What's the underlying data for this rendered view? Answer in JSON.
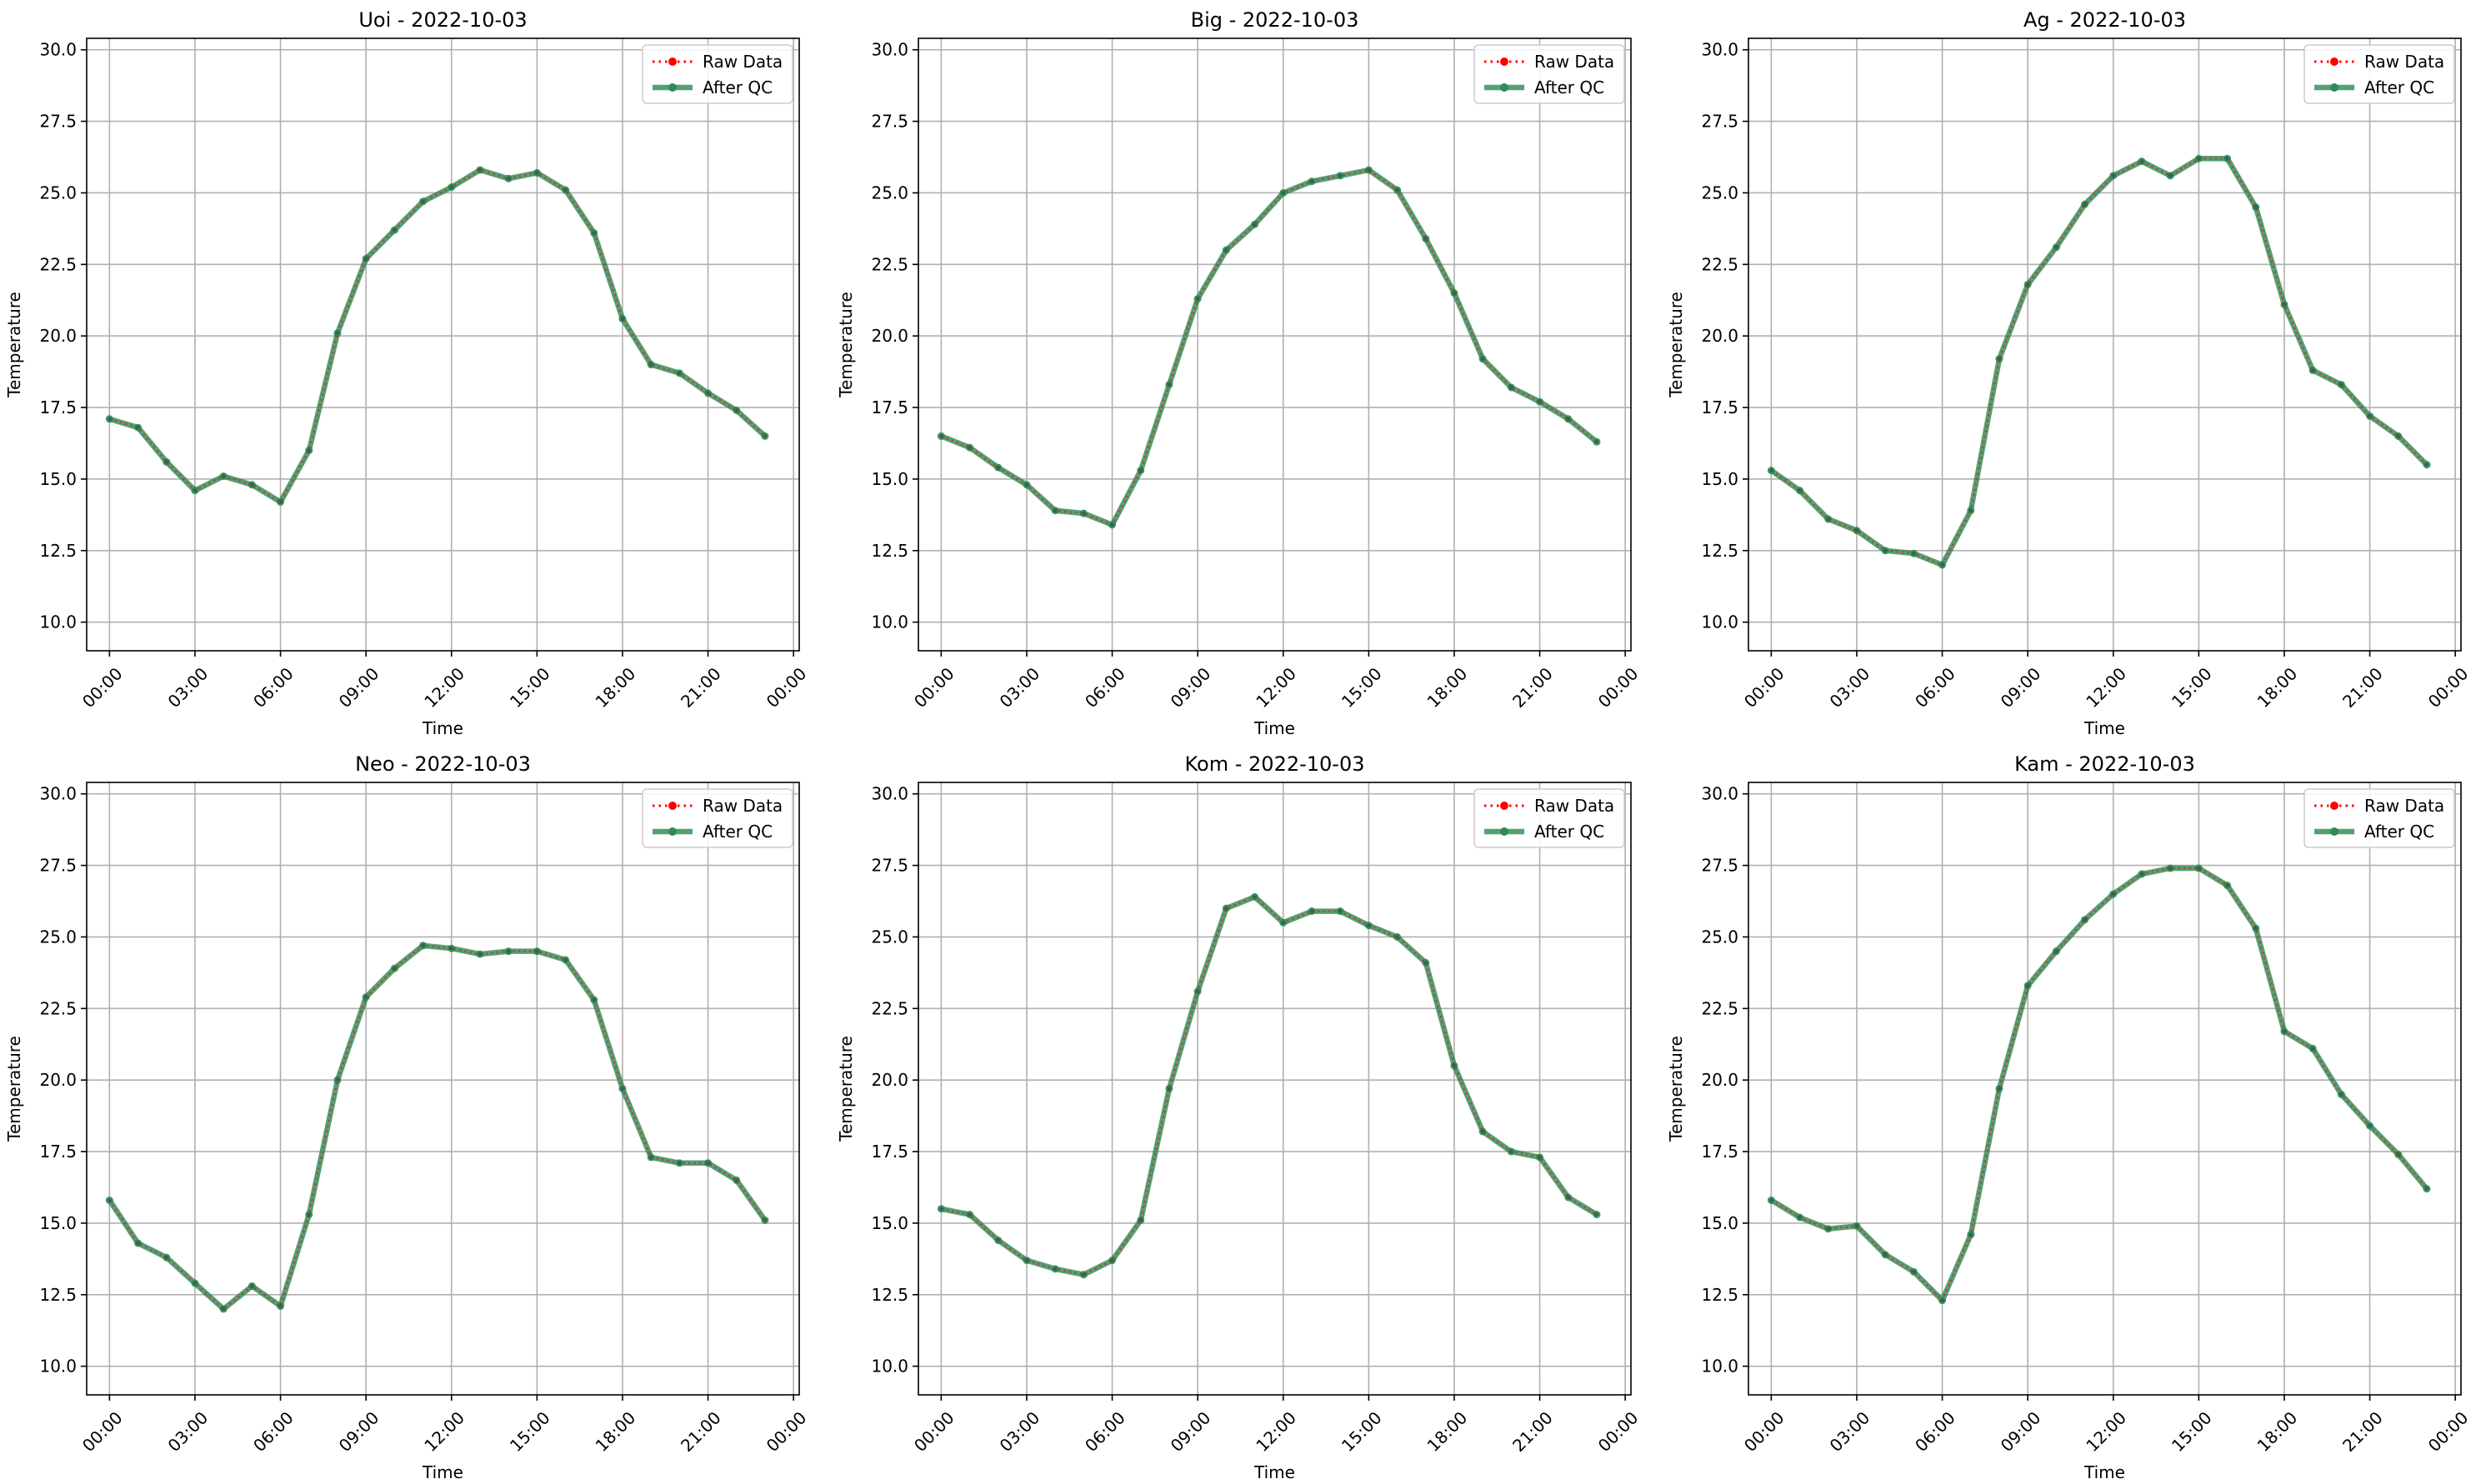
{
  "chart_data": [
    {
      "type": "line",
      "title": "Uoi - 2022-10-03",
      "xlabel": "Time",
      "ylabel": "Temperature",
      "x": [
        "00:00",
        "01:00",
        "02:00",
        "03:00",
        "04:00",
        "05:00",
        "06:00",
        "07:00",
        "08:00",
        "09:00",
        "10:00",
        "11:00",
        "12:00",
        "13:00",
        "14:00",
        "15:00",
        "16:00",
        "17:00",
        "18:00",
        "19:00",
        "20:00",
        "21:00",
        "22:00",
        "23:00"
      ],
      "x_ticks": [
        "00:00",
        "03:00",
        "06:00",
        "09:00",
        "12:00",
        "15:00",
        "18:00",
        "21:00",
        "00:00"
      ],
      "ylim": [
        9,
        30.4
      ],
      "y_ticks": [
        "10.0",
        "12.5",
        "15.0",
        "17.5",
        "20.0",
        "22.5",
        "25.0",
        "27.5",
        "30.0"
      ],
      "grid": true,
      "legend_position": "top-right",
      "series": [
        {
          "name": "Raw Data",
          "color": "#ff0000",
          "style": "dotted",
          "values": [
            17.1,
            16.8,
            15.6,
            14.6,
            15.1,
            14.8,
            14.2,
            16.0,
            20.1,
            22.7,
            23.7,
            24.7,
            25.2,
            25.8,
            25.5,
            25.7,
            25.1,
            23.6,
            20.6,
            19.0,
            18.7,
            18.0,
            17.4,
            16.5
          ]
        },
        {
          "name": "After QC",
          "color": "#2e8b57",
          "style": "solid",
          "values": [
            17.1,
            16.8,
            15.6,
            14.6,
            15.1,
            14.8,
            14.2,
            16.0,
            20.1,
            22.7,
            23.7,
            24.7,
            25.2,
            25.8,
            25.5,
            25.7,
            25.1,
            23.6,
            20.6,
            19.0,
            18.7,
            18.0,
            17.4,
            16.5
          ]
        }
      ]
    },
    {
      "type": "line",
      "title": "Big - 2022-10-03",
      "xlabel": "Time",
      "ylabel": "Temperature",
      "x": [
        "00:00",
        "01:00",
        "02:00",
        "03:00",
        "04:00",
        "05:00",
        "06:00",
        "07:00",
        "08:00",
        "09:00",
        "10:00",
        "11:00",
        "12:00",
        "13:00",
        "14:00",
        "15:00",
        "16:00",
        "17:00",
        "18:00",
        "19:00",
        "20:00",
        "21:00",
        "22:00",
        "23:00"
      ],
      "x_ticks": [
        "00:00",
        "03:00",
        "06:00",
        "09:00",
        "12:00",
        "15:00",
        "18:00",
        "21:00",
        "00:00"
      ],
      "ylim": [
        9,
        30.4
      ],
      "y_ticks": [
        "10.0",
        "12.5",
        "15.0",
        "17.5",
        "20.0",
        "22.5",
        "25.0",
        "27.5",
        "30.0"
      ],
      "grid": true,
      "legend_position": "top-right",
      "series": [
        {
          "name": "Raw Data",
          "color": "#ff0000",
          "style": "dotted",
          "values": [
            16.5,
            16.1,
            15.4,
            14.8,
            13.9,
            13.8,
            13.4,
            15.3,
            18.3,
            21.3,
            23.0,
            23.9,
            25.0,
            25.4,
            25.6,
            25.8,
            25.1,
            23.4,
            21.5,
            19.2,
            18.2,
            17.7,
            17.1,
            16.3
          ]
        },
        {
          "name": "After QC",
          "color": "#2e8b57",
          "style": "solid",
          "values": [
            16.5,
            16.1,
            15.4,
            14.8,
            13.9,
            13.8,
            13.4,
            15.3,
            18.3,
            21.3,
            23.0,
            23.9,
            25.0,
            25.4,
            25.6,
            25.8,
            25.1,
            23.4,
            21.5,
            19.2,
            18.2,
            17.7,
            17.1,
            16.3
          ]
        }
      ]
    },
    {
      "type": "line",
      "title": "Ag - 2022-10-03",
      "xlabel": "Time",
      "ylabel": "Temperature",
      "x": [
        "00:00",
        "01:00",
        "02:00",
        "03:00",
        "04:00",
        "05:00",
        "06:00",
        "07:00",
        "08:00",
        "09:00",
        "10:00",
        "11:00",
        "12:00",
        "13:00",
        "14:00",
        "15:00",
        "16:00",
        "17:00",
        "18:00",
        "19:00",
        "20:00",
        "21:00",
        "22:00",
        "23:00"
      ],
      "x_ticks": [
        "00:00",
        "03:00",
        "06:00",
        "09:00",
        "12:00",
        "15:00",
        "18:00",
        "21:00",
        "00:00"
      ],
      "ylim": [
        9,
        30.4
      ],
      "y_ticks": [
        "10.0",
        "12.5",
        "15.0",
        "17.5",
        "20.0",
        "22.5",
        "25.0",
        "27.5",
        "30.0"
      ],
      "grid": true,
      "legend_position": "top-right",
      "series": [
        {
          "name": "Raw Data",
          "color": "#ff0000",
          "style": "dotted",
          "values": [
            15.3,
            14.6,
            13.6,
            13.2,
            12.5,
            12.4,
            12.0,
            13.9,
            19.2,
            21.8,
            23.1,
            24.6,
            25.6,
            26.1,
            25.6,
            26.2,
            26.2,
            24.5,
            21.1,
            18.8,
            18.3,
            17.2,
            16.5,
            15.5
          ]
        },
        {
          "name": "After QC",
          "color": "#2e8b57",
          "style": "solid",
          "values": [
            15.3,
            14.6,
            13.6,
            13.2,
            12.5,
            12.4,
            12.0,
            13.9,
            19.2,
            21.8,
            23.1,
            24.6,
            25.6,
            26.1,
            25.6,
            26.2,
            26.2,
            24.5,
            21.1,
            18.8,
            18.3,
            17.2,
            16.5,
            15.5
          ]
        }
      ]
    },
    {
      "type": "line",
      "title": "Neo - 2022-10-03",
      "xlabel": "Time",
      "ylabel": "Temperature",
      "x": [
        "00:00",
        "01:00",
        "02:00",
        "03:00",
        "04:00",
        "05:00",
        "06:00",
        "07:00",
        "08:00",
        "09:00",
        "10:00",
        "11:00",
        "12:00",
        "13:00",
        "14:00",
        "15:00",
        "16:00",
        "17:00",
        "18:00",
        "19:00",
        "20:00",
        "21:00",
        "22:00",
        "23:00"
      ],
      "x_ticks": [
        "00:00",
        "03:00",
        "06:00",
        "09:00",
        "12:00",
        "15:00",
        "18:00",
        "21:00",
        "00:00"
      ],
      "ylim": [
        9,
        30.4
      ],
      "y_ticks": [
        "10.0",
        "12.5",
        "15.0",
        "17.5",
        "20.0",
        "22.5",
        "25.0",
        "27.5",
        "30.0"
      ],
      "grid": true,
      "legend_position": "top-right",
      "series": [
        {
          "name": "Raw Data",
          "color": "#ff0000",
          "style": "dotted",
          "values": [
            15.8,
            14.3,
            13.8,
            12.9,
            12.0,
            12.8,
            12.1,
            15.3,
            20.0,
            22.9,
            23.9,
            24.7,
            24.6,
            24.4,
            24.5,
            24.5,
            24.2,
            22.8,
            19.7,
            17.3,
            17.1,
            17.1,
            16.5,
            15.1
          ]
        },
        {
          "name": "After QC",
          "color": "#2e8b57",
          "style": "solid",
          "values": [
            15.8,
            14.3,
            13.8,
            12.9,
            12.0,
            12.8,
            12.1,
            15.3,
            20.0,
            22.9,
            23.9,
            24.7,
            24.6,
            24.4,
            24.5,
            24.5,
            24.2,
            22.8,
            19.7,
            17.3,
            17.1,
            17.1,
            16.5,
            15.1
          ]
        }
      ]
    },
    {
      "type": "line",
      "title": "Kom - 2022-10-03",
      "xlabel": "Time",
      "ylabel": "Temperature",
      "x": [
        "00:00",
        "01:00",
        "02:00",
        "03:00",
        "04:00",
        "05:00",
        "06:00",
        "07:00",
        "08:00",
        "09:00",
        "10:00",
        "11:00",
        "12:00",
        "13:00",
        "14:00",
        "15:00",
        "16:00",
        "17:00",
        "18:00",
        "19:00",
        "20:00",
        "21:00",
        "22:00",
        "23:00"
      ],
      "x_ticks": [
        "00:00",
        "03:00",
        "06:00",
        "09:00",
        "12:00",
        "15:00",
        "18:00",
        "21:00",
        "00:00"
      ],
      "ylim": [
        9,
        30.4
      ],
      "y_ticks": [
        "10.0",
        "12.5",
        "15.0",
        "17.5",
        "20.0",
        "22.5",
        "25.0",
        "27.5",
        "30.0"
      ],
      "grid": true,
      "legend_position": "top-right",
      "series": [
        {
          "name": "Raw Data",
          "color": "#ff0000",
          "style": "dotted",
          "values": [
            15.5,
            15.3,
            14.4,
            13.7,
            13.4,
            13.2,
            13.7,
            15.1,
            19.7,
            23.1,
            26.0,
            26.4,
            25.5,
            25.9,
            25.9,
            25.4,
            25.0,
            24.1,
            20.5,
            18.2,
            17.5,
            17.3,
            15.9,
            15.3
          ]
        },
        {
          "name": "After QC",
          "color": "#2e8b57",
          "style": "solid",
          "values": [
            15.5,
            15.3,
            14.4,
            13.7,
            13.4,
            13.2,
            13.7,
            15.1,
            19.7,
            23.1,
            26.0,
            26.4,
            25.5,
            25.9,
            25.9,
            25.4,
            25.0,
            24.1,
            20.5,
            18.2,
            17.5,
            17.3,
            15.9,
            15.3
          ]
        }
      ]
    },
    {
      "type": "line",
      "title": "Kam - 2022-10-03",
      "xlabel": "Time",
      "ylabel": "Temperature",
      "x": [
        "00:00",
        "01:00",
        "02:00",
        "03:00",
        "04:00",
        "05:00",
        "06:00",
        "07:00",
        "08:00",
        "09:00",
        "10:00",
        "11:00",
        "12:00",
        "13:00",
        "14:00",
        "15:00",
        "16:00",
        "17:00",
        "18:00",
        "19:00",
        "20:00",
        "21:00",
        "22:00",
        "23:00"
      ],
      "x_ticks": [
        "00:00",
        "03:00",
        "06:00",
        "09:00",
        "12:00",
        "15:00",
        "18:00",
        "21:00",
        "00:00"
      ],
      "ylim": [
        9,
        30.4
      ],
      "y_ticks": [
        "10.0",
        "12.5",
        "15.0",
        "17.5",
        "20.0",
        "22.5",
        "25.0",
        "27.5",
        "30.0"
      ],
      "grid": true,
      "legend_position": "top-right",
      "series": [
        {
          "name": "Raw Data",
          "color": "#ff0000",
          "style": "dotted",
          "values": [
            15.8,
            15.2,
            14.8,
            14.9,
            13.9,
            13.3,
            12.3,
            14.6,
            19.7,
            23.3,
            24.5,
            25.6,
            26.5,
            27.2,
            27.4,
            27.4,
            26.8,
            25.3,
            21.7,
            21.1,
            19.5,
            18.4,
            17.4,
            16.2
          ]
        },
        {
          "name": "After QC",
          "color": "#2e8b57",
          "style": "solid",
          "values": [
            15.8,
            15.2,
            14.8,
            14.9,
            13.9,
            13.3,
            12.3,
            14.6,
            19.7,
            23.3,
            24.5,
            25.6,
            26.5,
            27.2,
            27.4,
            27.4,
            26.8,
            25.3,
            21.7,
            21.1,
            19.5,
            18.4,
            17.4,
            16.2
          ]
        }
      ]
    }
  ]
}
